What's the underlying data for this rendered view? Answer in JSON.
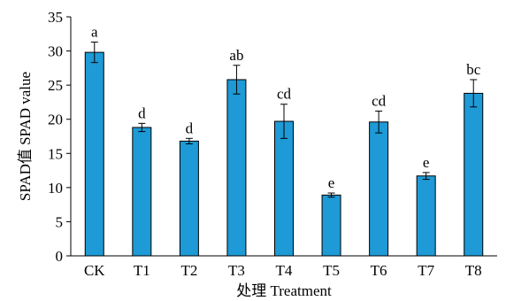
{
  "chart_data": {
    "type": "bar",
    "categories": [
      "CK",
      "T1",
      "T2",
      "T3",
      "T4",
      "T5",
      "T6",
      "T7",
      "T8"
    ],
    "values": [
      29.8,
      18.8,
      16.8,
      25.8,
      19.7,
      8.9,
      19.6,
      11.7,
      23.8
    ],
    "errors": [
      1.5,
      0.6,
      0.4,
      2.1,
      2.5,
      0.3,
      1.6,
      0.5,
      2.0
    ],
    "significance": [
      "a",
      "d",
      "d",
      "ab",
      "cd",
      "e",
      "cd",
      "e",
      "bc"
    ],
    "xlabel": "处理 Treatment",
    "ylabel": "SPAD值 SPAD value",
    "ylim": [
      0,
      35
    ],
    "yticks": [
      0,
      5,
      10,
      15,
      20,
      25,
      30,
      35
    ],
    "bar_color": "#1e9ad6",
    "grid": false
  }
}
